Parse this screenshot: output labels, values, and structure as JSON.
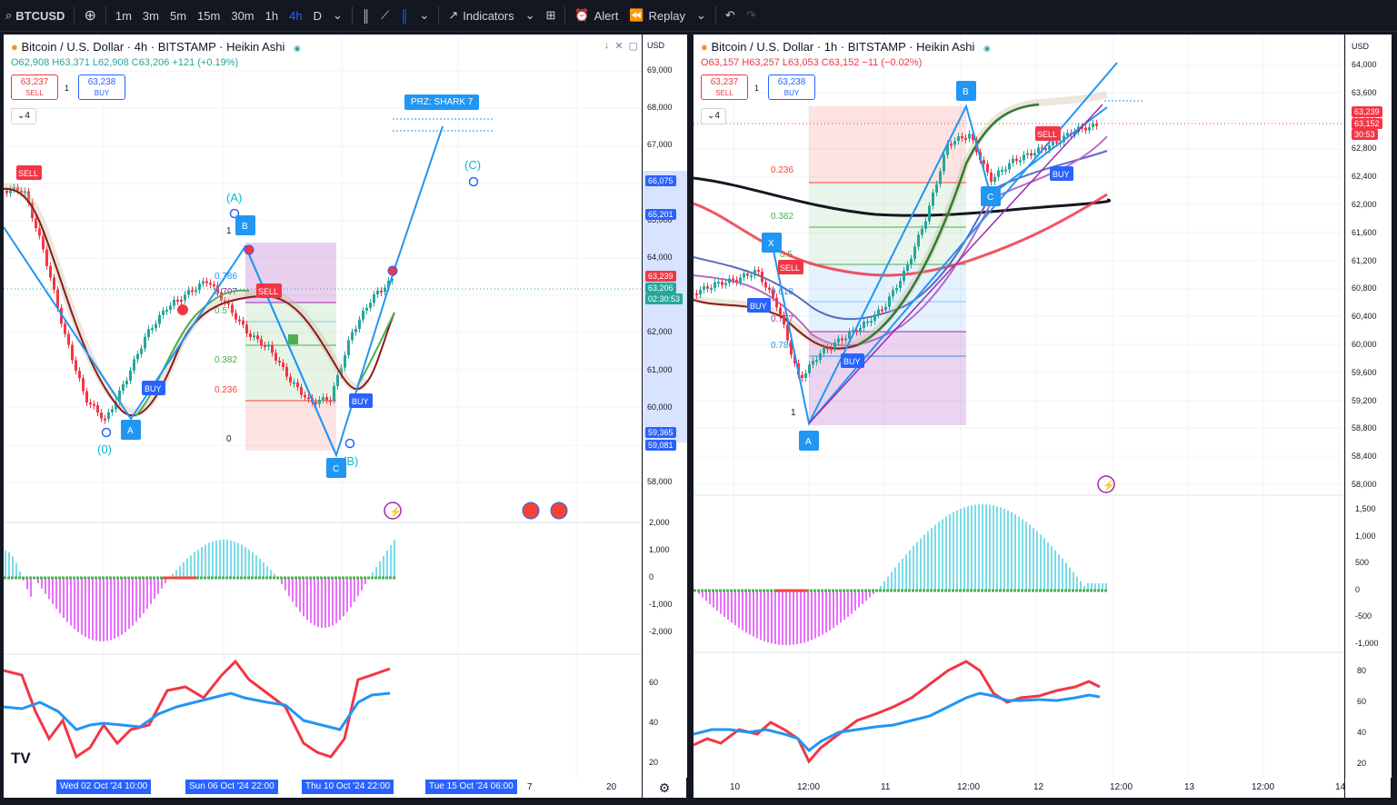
{
  "toolbar": {
    "symbol": "BTCUSD",
    "intervals": [
      "1m",
      "3m",
      "5m",
      "15m",
      "30m",
      "1h",
      "4h",
      "D"
    ],
    "active_interval": "4h",
    "indicators": "Indicators",
    "alert": "Alert",
    "replay": "Replay"
  },
  "left": {
    "title": "Bitcoin / U.S. Dollar · 4h · BITSTAMP · Heikin Ashi",
    "o": "O62,908",
    "h": "H63,371",
    "l": "L62,908",
    "c": "C63,206",
    "chg": "+121 (+0.19%)",
    "sell_price": "63,237",
    "sell": "SELL",
    "spread": "1",
    "buy_price": "63,238",
    "buy": "BUY",
    "count": "4",
    "currency": "USD",
    "price_axis": [
      "69,000",
      "68,000",
      "67,000",
      "66,000",
      "65,000",
      "64,000",
      "63,000",
      "62,000",
      "61,000",
      "60,000",
      "59,000",
      "58,000"
    ],
    "price_tags": {
      "t1": "66,075",
      "t2": "65,201",
      "t3": "63,239",
      "t4": "63,206",
      "t5": "02:30:53",
      "t6": "59,365",
      "t7": "59,081"
    },
    "osc_axis": [
      "2,000",
      "1,000",
      "0",
      "-1,000",
      "-2,000"
    ],
    "rsi_axis": [
      "60",
      "40",
      "20"
    ],
    "time_tags": [
      "Wed 02 Oct '24   10:00",
      "Sun 06 Oct '24   22:00",
      "Thu 10 Oct '24   22:00",
      "Tue 15 Oct '24   06:00"
    ],
    "time_extra": [
      "7",
      "20"
    ],
    "prz": "PRZ: SHARK 7",
    "fib": [
      "0.786",
      "0.707",
      "0.5",
      "0.382",
      "0.236",
      "1",
      "0"
    ],
    "wave": [
      "(A)",
      "(C)",
      "(0)",
      "(B)"
    ]
  },
  "right": {
    "title": "Bitcoin / U.S. Dollar · 1h · BITSTAMP · Heikin Ashi",
    "o": "O63,157",
    "h": "H63,257",
    "l": "L63,053",
    "c": "C63,152",
    "chg": "−11 (−0.02%)",
    "sell_price": "63,237",
    "sell": "SELL",
    "spread": "1",
    "buy_price": "63,238",
    "buy": "BUY",
    "count": "4",
    "currency": "USD",
    "price_axis": [
      "64,000",
      "63,600",
      "63,200",
      "62,800",
      "62,400",
      "62,000",
      "61,600",
      "61,200",
      "60,800",
      "60,400",
      "60,000",
      "59,600",
      "59,200",
      "58,800",
      "58,400",
      "58,000"
    ],
    "price_tags": {
      "t1": "63,239",
      "t2": "63,152",
      "t3": "30:53"
    },
    "osc_axis": [
      "1,500",
      "1,000",
      "500",
      "0",
      "-500",
      "-1,000"
    ],
    "rsi_axis": [
      "80",
      "60",
      "40",
      "20"
    ],
    "time_axis": [
      "10",
      "12:00",
      "11",
      "12:00",
      "12",
      "12:00",
      "13",
      "12:00",
      "14"
    ],
    "fib": [
      "0.236",
      "0.382",
      "0.5",
      "0.618",
      "0.707",
      "0.786",
      "1"
    ]
  }
}
